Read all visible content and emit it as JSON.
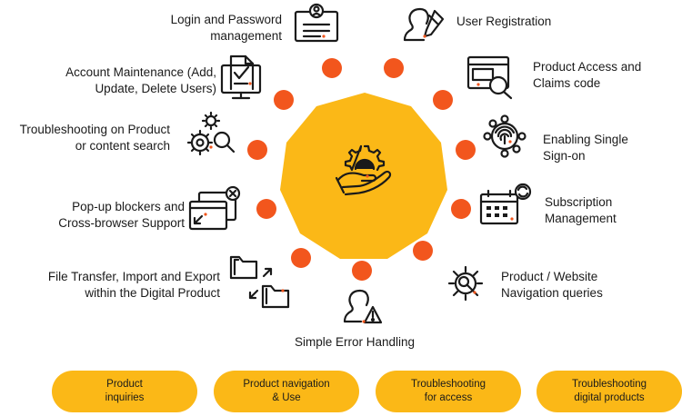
{
  "colors": {
    "hub": "#fbb817",
    "dot": "#f2561d",
    "icon": "#1a1a1a",
    "icon_accent": "#f2561d",
    "pill": "#fbb817"
  },
  "center_icon": "gear-hand-icon",
  "items": [
    {
      "label": "Login and Password\nmanagement",
      "icon": "id-card-icon"
    },
    {
      "label": "User Registration",
      "icon": "user-edit-icon"
    },
    {
      "label": "Account Maintenance (Add,\nUpdate, Delete Users)",
      "icon": "monitor-checklist-icon"
    },
    {
      "label": "Product Access and\nClaims code",
      "icon": "window-search-icon"
    },
    {
      "label": "Troubleshooting on Product\nor content search",
      "icon": "gears-search-icon"
    },
    {
      "label": "Enabling Single\nSign-on",
      "icon": "fingerprint-network-icon"
    },
    {
      "label": "Pop-up blockers and\nCross-browser Support",
      "icon": "popup-windows-icon"
    },
    {
      "label": "Subscription\nManagement",
      "icon": "calendar-sync-icon"
    },
    {
      "label": "File Transfer, Import and Export\nwithin the Digital Product",
      "icon": "folders-transfer-icon"
    },
    {
      "label": "Product / Website\nNavigation queries",
      "icon": "gear-search-icon"
    },
    {
      "label": "Simple Error Handling",
      "icon": "user-warning-icon"
    }
  ],
  "pills": [
    "Product\ninquiries",
    "Product navigation\n& Use",
    "Troubleshooting\nfor access",
    "Troubleshooting\ndigital products"
  ]
}
